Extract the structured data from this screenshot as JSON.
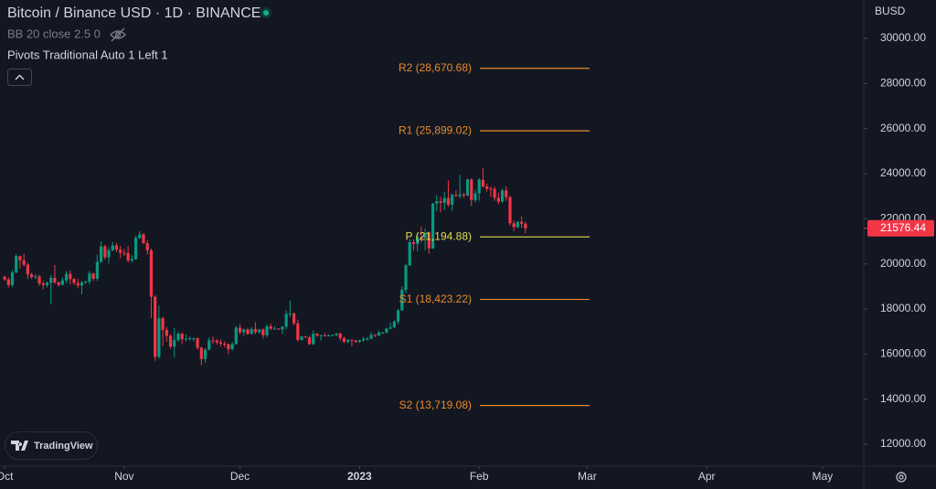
{
  "chart_data": {
    "type": "candlestick",
    "title": "Bitcoin / Binance USD · 1D · BINANCE",
    "indicators": [
      "BB 20 close 2.5 0",
      "Pivots Traditional Auto 1 Left 1"
    ],
    "currency": "BUSD",
    "branding": "TradingView",
    "last_price": 21576.44,
    "up_color": "#089981",
    "down_color": "#f23645",
    "ylim": [
      11030,
      31700
    ],
    "yticks": [
      {
        "value": 12000,
        "label": "12000.00"
      },
      {
        "value": 14000,
        "label": "14000.00"
      },
      {
        "value": 16000,
        "label": "16000.00"
      },
      {
        "value": 18000,
        "label": "18000.00"
      },
      {
        "value": 20000,
        "label": "20000.00"
      },
      {
        "value": 22000,
        "label": "22000.00"
      },
      {
        "value": 24000,
        "label": "24000.00"
      },
      {
        "value": 26000,
        "label": "26000.00"
      },
      {
        "value": 28000,
        "label": "28000.00"
      },
      {
        "value": 30000,
        "label": "30000.00"
      }
    ],
    "xlim": [
      -1.2,
      222.7
    ],
    "xticks": [
      {
        "value": 0,
        "label": "Oct"
      },
      {
        "value": 31,
        "label": "Nov"
      },
      {
        "value": 61,
        "label": "Dec"
      },
      {
        "value": 92,
        "label": "2023"
      },
      {
        "value": 123,
        "label": "Feb"
      },
      {
        "value": 151,
        "label": "Mar"
      },
      {
        "value": 182,
        "label": "Apr"
      },
      {
        "value": 212,
        "label": "May"
      }
    ],
    "pivots": [
      {
        "label": "R2 (28,670.68)",
        "value": 28670.68,
        "color": "#e8892b"
      },
      {
        "label": "R1 (25,899.02)",
        "value": 25899.02,
        "color": "#e8892b"
      },
      {
        "label": "P (21,194.88)",
        "value": 21194.88,
        "color": "#e3dc4c"
      },
      {
        "label": "S1 (18,423.22)",
        "value": 18423.22,
        "color": "#e8892b"
      },
      {
        "label": "S2 (13,719.08)",
        "value": 13719.08,
        "color": "#e8892b"
      }
    ],
    "candles": [
      [
        19430,
        19480,
        19250,
        19310
      ],
      [
        19310,
        19400,
        18950,
        19060
      ],
      [
        19060,
        19720,
        18970,
        19620
      ],
      [
        19620,
        20450,
        19580,
        20340
      ],
      [
        20340,
        20370,
        19800,
        20160
      ],
      [
        20160,
        20440,
        19880,
        19960
      ],
      [
        19960,
        20050,
        19330,
        19530
      ],
      [
        19530,
        19600,
        19330,
        19420
      ],
      [
        19420,
        19540,
        19320,
        19440
      ],
      [
        19440,
        19520,
        19020,
        19130
      ],
      [
        19130,
        19250,
        18870,
        19060
      ],
      [
        19060,
        19220,
        18960,
        19160
      ],
      [
        19160,
        19500,
        18200,
        19380
      ],
      [
        19380,
        19950,
        19100,
        19180
      ],
      [
        19180,
        19220,
        18990,
        19070
      ],
      [
        19070,
        19400,
        19050,
        19270
      ],
      [
        19270,
        19680,
        19150,
        19550
      ],
      [
        19550,
        19700,
        19100,
        19330
      ],
      [
        19330,
        19360,
        19060,
        19150
      ],
      [
        19150,
        19350,
        18920,
        19040
      ],
      [
        19040,
        19250,
        18650,
        19170
      ],
      [
        19170,
        19260,
        19120,
        19210
      ],
      [
        19210,
        19690,
        19080,
        19570
      ],
      [
        19570,
        19610,
        19250,
        19340
      ],
      [
        19340,
        20400,
        19250,
        20090
      ],
      [
        20090,
        21000,
        20060,
        20770
      ],
      [
        20770,
        20850,
        20200,
        20290
      ],
      [
        20290,
        20740,
        20000,
        20600
      ],
      [
        20600,
        20980,
        20560,
        20820
      ],
      [
        20820,
        20930,
        20520,
        20630
      ],
      [
        20630,
        20800,
        20250,
        20490
      ],
      [
        20490,
        20670,
        20350,
        20480
      ],
      [
        20480,
        20790,
        20060,
        20150
      ],
      [
        20150,
        20380,
        20050,
        20210
      ],
      [
        20210,
        21250,
        20180,
        21150
      ],
      [
        21150,
        21450,
        21100,
        21300
      ],
      [
        21300,
        21370,
        20880,
        20920
      ],
      [
        20920,
        21050,
        20420,
        20600
      ],
      [
        20600,
        20680,
        17600,
        18540
      ],
      [
        18540,
        18600,
        15700,
        15880
      ],
      [
        15880,
        18150,
        15790,
        17590
      ],
      [
        17590,
        17650,
        16360,
        17070
      ],
      [
        17070,
        17200,
        16550,
        16810
      ],
      [
        16810,
        16880,
        16230,
        16330
      ],
      [
        16330,
        17150,
        15850,
        16620
      ],
      [
        16620,
        17000,
        16550,
        16900
      ],
      [
        16900,
        16960,
        16440,
        16660
      ],
      [
        16660,
        16880,
        16560,
        16690
      ],
      [
        16690,
        16780,
        16600,
        16700
      ],
      [
        16700,
        16730,
        16560,
        16700
      ],
      [
        16700,
        16750,
        16200,
        16280
      ],
      [
        16280,
        16320,
        15500,
        15780
      ],
      [
        15780,
        16270,
        15620,
        16190
      ],
      [
        16190,
        16740,
        16170,
        16610
      ],
      [
        16610,
        16780,
        16450,
        16600
      ],
      [
        16600,
        16660,
        16420,
        16520
      ],
      [
        16520,
        16660,
        16350,
        16460
      ],
      [
        16460,
        16560,
        16300,
        16440
      ],
      [
        16440,
        16470,
        16000,
        16220
      ],
      [
        16220,
        16540,
        16140,
        16440
      ],
      [
        16440,
        17250,
        16420,
        17170
      ],
      [
        17170,
        17330,
        16860,
        16970
      ],
      [
        16970,
        17130,
        16800,
        17090
      ],
      [
        17090,
        17170,
        16850,
        16890
      ],
      [
        16890,
        17200,
        16880,
        17110
      ],
      [
        17110,
        17420,
        16880,
        16970
      ],
      [
        16970,
        17100,
        16900,
        17090
      ],
      [
        17090,
        17140,
        16680,
        16840
      ],
      [
        16840,
        17310,
        16740,
        17230
      ],
      [
        17230,
        17350,
        17060,
        17130
      ],
      [
        17130,
        17230,
        17090,
        17130
      ],
      [
        17130,
        17150,
        17080,
        17090
      ],
      [
        17090,
        17240,
        16880,
        17210
      ],
      [
        17210,
        17930,
        17090,
        17780
      ],
      [
        17780,
        18370,
        17650,
        17800
      ],
      [
        17800,
        17850,
        17280,
        17360
      ],
      [
        17360,
        17530,
        16550,
        16630
      ],
      [
        16630,
        16800,
        16590,
        16780
      ],
      [
        16780,
        16800,
        16700,
        16740
      ],
      [
        16740,
        16800,
        16400,
        16440
      ],
      [
        16440,
        17050,
        16400,
        16900
      ],
      [
        16900,
        16930,
        16760,
        16820
      ],
      [
        16820,
        16860,
        16600,
        16830
      ],
      [
        16830,
        16950,
        16780,
        16790
      ],
      [
        16790,
        16870,
        16780,
        16840
      ],
      [
        16840,
        16870,
        16790,
        16840
      ],
      [
        16840,
        16930,
        16790,
        16910
      ],
      [
        16910,
        16950,
        16600,
        16700
      ],
      [
        16700,
        16780,
        16480,
        16550
      ],
      [
        16550,
        16650,
        16470,
        16630
      ],
      [
        16630,
        16640,
        16350,
        16600
      ],
      [
        16600,
        16630,
        16490,
        16540
      ],
      [
        16540,
        16630,
        16500,
        16610
      ],
      [
        16610,
        16770,
        16550,
        16670
      ],
      [
        16670,
        16760,
        16600,
        16680
      ],
      [
        16680,
        16980,
        16650,
        16850
      ],
      [
        16850,
        16880,
        16750,
        16830
      ],
      [
        16830,
        17040,
        16780,
        16950
      ],
      [
        16950,
        16990,
        16910,
        16950
      ],
      [
        16950,
        17170,
        16920,
        17130
      ],
      [
        17130,
        17390,
        17100,
        17180
      ],
      [
        17180,
        17490,
        17140,
        17440
      ],
      [
        17440,
        18000,
        17320,
        17940
      ],
      [
        17940,
        19000,
        17910,
        18850
      ],
      [
        18850,
        20000,
        18700,
        19930
      ],
      [
        19930,
        21100,
        19900,
        20960
      ],
      [
        20960,
        21080,
        20580,
        20880
      ],
      [
        20880,
        21380,
        20560,
        21180
      ],
      [
        21180,
        21650,
        20950,
        21130
      ],
      [
        21130,
        21570,
        20600,
        21380
      ],
      [
        21380,
        21440,
        20450,
        20680
      ],
      [
        20680,
        22700,
        20660,
        22670
      ],
      [
        22670,
        23050,
        22330,
        22780
      ],
      [
        22780,
        22980,
        22280,
        22710
      ],
      [
        22710,
        23200,
        22380,
        22920
      ],
      [
        22920,
        23700,
        22530,
        22620
      ],
      [
        22620,
        23130,
        22350,
        23060
      ],
      [
        23060,
        23260,
        22970,
        23010
      ],
      [
        23010,
        23950,
        22900,
        23080
      ],
      [
        23080,
        23150,
        22930,
        23030
      ],
      [
        23030,
        23780,
        22990,
        23740
      ],
      [
        23740,
        23790,
        22560,
        22830
      ],
      [
        22830,
        23300,
        22720,
        23130
      ],
      [
        23130,
        23800,
        22800,
        23730
      ],
      [
        23730,
        24250,
        23380,
        23430
      ],
      [
        23430,
        23560,
        23200,
        23330
      ],
      [
        23330,
        23440,
        22970,
        23320
      ],
      [
        23320,
        23430,
        22800,
        22930
      ],
      [
        22930,
        23160,
        22640,
        22760
      ],
      [
        22760,
        23340,
        22710,
        23260
      ],
      [
        23260,
        23440,
        22790,
        22960
      ],
      [
        22960,
        23010,
        21700,
        21800
      ],
      [
        21800,
        21930,
        21450,
        21630
      ],
      [
        21630,
        21900,
        21580,
        21860
      ],
      [
        21860,
        22100,
        21600,
        21780
      ],
      [
        21780,
        21860,
        21360,
        21576.44
      ]
    ]
  }
}
